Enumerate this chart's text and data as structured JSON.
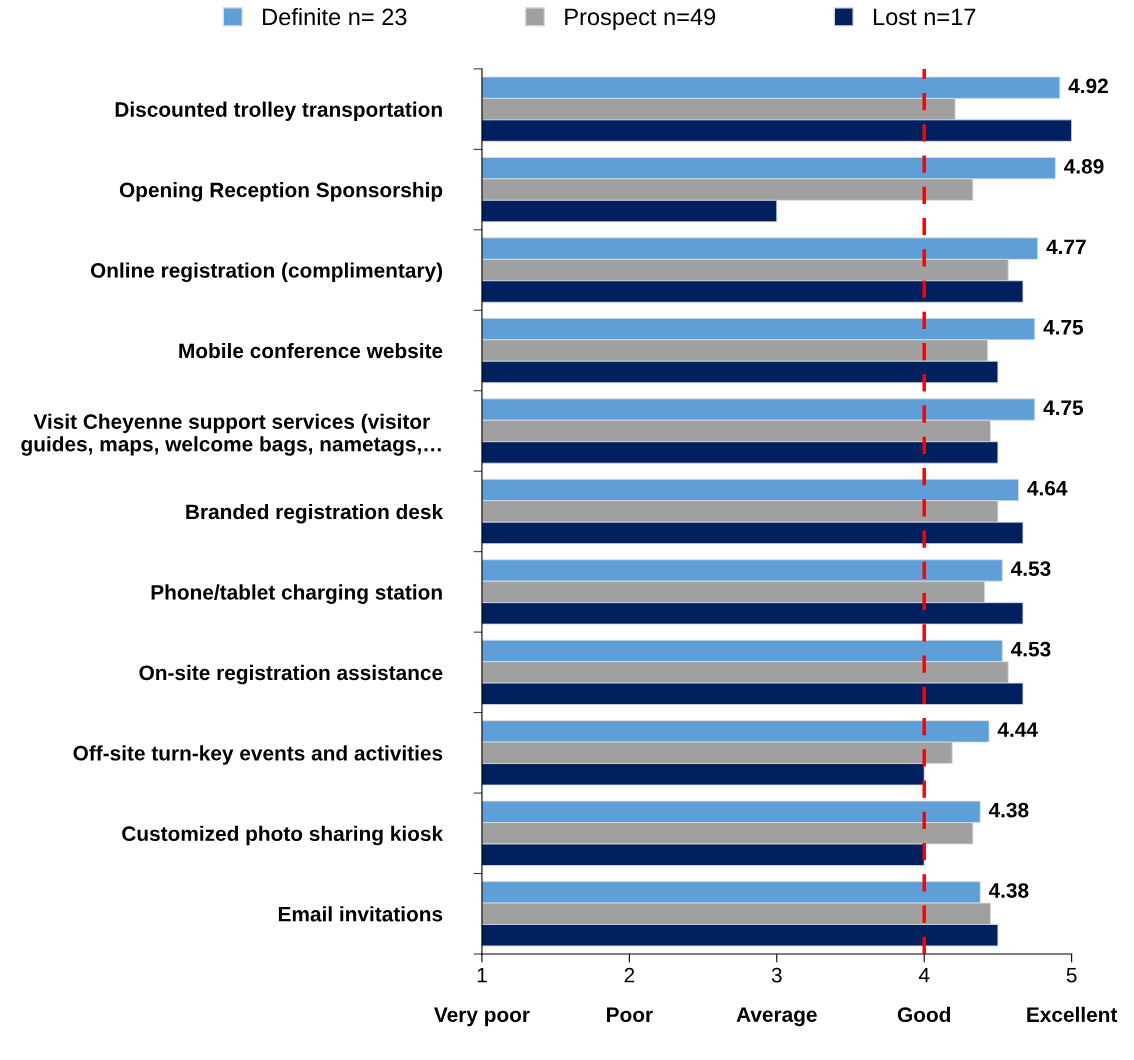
{
  "chart_data": {
    "type": "bar",
    "orientation": "horizontal",
    "legend": "top",
    "grid": false,
    "categories": [
      "Discounted trolley transportation",
      "Opening Reception Sponsorship",
      "Online registration (complimentary)",
      "Mobile conference website",
      "Visit Cheyenne support services (visitor\nguides, maps, welcome bags, nametags,…",
      "Branded registration desk",
      "Phone/tablet charging station",
      "On-site registration assistance",
      "Off-site turn-key events and activities",
      "Customized photo sharing kiosk",
      "Email invitations"
    ],
    "series": [
      {
        "name": "Definite n= 23",
        "color": "#5f9fd8",
        "values": [
          4.92,
          4.89,
          4.77,
          4.75,
          4.75,
          4.64,
          4.53,
          4.53,
          4.44,
          4.38,
          4.38
        ],
        "value_labels": [
          "4.92",
          "4.89",
          "4.77",
          "4.75",
          "4.75",
          "4.64",
          "4.53",
          "4.53",
          "4.44",
          "4.38",
          "4.38"
        ]
      },
      {
        "name": "Prospect n=49",
        "color": "#a0a0a0",
        "values": [
          4.21,
          4.33,
          4.57,
          4.43,
          4.45,
          4.5,
          4.41,
          4.57,
          4.19,
          4.33,
          4.45
        ]
      },
      {
        "name": "Lost n=17",
        "color": "#002060",
        "values": [
          5.0,
          3.0,
          4.67,
          4.5,
          4.5,
          4.67,
          4.67,
          4.67,
          4.0,
          4.0,
          4.5
        ]
      }
    ],
    "xlim": [
      1,
      5
    ],
    "xticks": [
      1,
      2,
      3,
      4,
      5
    ],
    "annotations": [
      "Very poor",
      "Poor",
      "Average",
      "Good",
      "Excellent"
    ],
    "ref_lines": [
      {
        "axis": "x",
        "value": 4,
        "color": "#ff0000",
        "line_style": "dashed"
      }
    ]
  }
}
